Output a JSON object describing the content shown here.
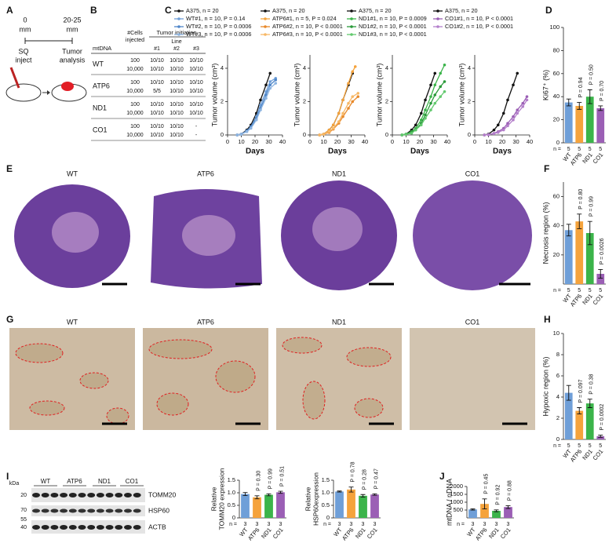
{
  "panel_labels": [
    "A",
    "B",
    "C",
    "D",
    "E",
    "F",
    "G",
    "H",
    "I",
    "J"
  ],
  "panel_A": {
    "start": [
      "0",
      "mm"
    ],
    "end": [
      "20-25",
      "mm"
    ],
    "inject": [
      "SQ",
      "inject"
    ],
    "analysis": [
      "Tumor",
      "analysis"
    ]
  },
  "table_B": {
    "header": {
      "cells": "#Cells",
      "injected": "injected",
      "tumor_initiation": "Tumor initiation",
      "line": "Line",
      "lines": [
        "#1",
        "#2",
        "#3"
      ],
      "mtdna": "mtDNA"
    },
    "rows": [
      {
        "name": "WT",
        "cells": [
          "100",
          "10,000"
        ],
        "results": [
          [
            "10/10",
            "10/10",
            "10/10"
          ],
          [
            "10/10",
            "10/10",
            "10/10"
          ]
        ]
      },
      {
        "name": "ATP6",
        "cells": [
          "100",
          "10,000"
        ],
        "results": [
          [
            "10/10",
            "10/10",
            "10/10"
          ],
          [
            "5/5",
            "10/10",
            "10/10"
          ]
        ]
      },
      {
        "name": "ND1",
        "cells": [
          "100",
          "10,000"
        ],
        "results": [
          [
            "10/10",
            "10/10",
            "10/10"
          ],
          [
            "10/10",
            "10/10",
            "10/10"
          ]
        ]
      },
      {
        "name": "CO1",
        "cells": [
          "100",
          "10,000"
        ],
        "results": [
          [
            "10/10",
            "10/10",
            "-"
          ],
          [
            "10/10",
            "10/10",
            "-"
          ]
        ]
      }
    ]
  },
  "panel_E": {
    "labels": [
      "WT",
      "ATP6",
      "ND1",
      "CO1"
    ]
  },
  "panel_G": {
    "labels": [
      "WT",
      "ATP6",
      "ND1",
      "CO1"
    ]
  },
  "panel_I": {
    "kda": "kDa",
    "markers": [
      "20",
      "70",
      "55",
      "40"
    ],
    "lanes": [
      "WT",
      "ATP6",
      "ND1",
      "CO1"
    ],
    "proteins": [
      "TOMM20",
      "HSP60",
      "ACTB"
    ]
  },
  "chart_data": [
    {
      "type": "line",
      "xlabel": "Days",
      "ylabel": "Tumor volume (cm³)",
      "xlim": [
        0,
        40
      ],
      "xticks": [
        0,
        10,
        20,
        30,
        40
      ],
      "ylim": [
        0,
        4.8
      ],
      "yticks": [
        0,
        2,
        4
      ],
      "series": [
        {
          "name": "A375, n = 20",
          "color": "#111111",
          "x": [
            7,
            10,
            14,
            17,
            21,
            24,
            28,
            31
          ],
          "values": [
            0,
            0.05,
            0.3,
            0.6,
            1.3,
            2.1,
            3.0,
            3.7
          ]
        },
        {
          "name": "WT#1, n = 10, P = 0.14",
          "color": "#6f9fd8",
          "x": [
            7,
            10,
            14,
            17,
            21,
            24,
            28,
            31,
            35
          ],
          "values": [
            0,
            0.05,
            0.2,
            0.5,
            1.1,
            1.8,
            2.6,
            3.2,
            3.4
          ]
        },
        {
          "name": "WT#2, n = 10, P = 0.0006",
          "color": "#4f86c9",
          "x": [
            7,
            10,
            14,
            17,
            21,
            24,
            28,
            31,
            35
          ],
          "values": [
            0,
            0.05,
            0.25,
            0.5,
            1.0,
            1.6,
            2.4,
            3.0,
            3.3
          ]
        },
        {
          "name": "WT#3, n = 10, P = 0.0006",
          "color": "#8db4e0",
          "x": [
            7,
            10,
            14,
            17,
            21,
            24,
            28,
            31,
            35
          ],
          "values": [
            0,
            0.05,
            0.2,
            0.4,
            0.9,
            1.5,
            2.2,
            2.8,
            3.1
          ]
        }
      ]
    },
    {
      "type": "line",
      "xlabel": "Days",
      "ylabel": "Tumor volume (cm³)",
      "xlim": [
        0,
        40
      ],
      "xticks": [
        0,
        10,
        20,
        30,
        40
      ],
      "ylim": [
        0,
        4.8
      ],
      "yticks": [
        0,
        2,
        4
      ],
      "series": [
        {
          "name": "A375, n = 20",
          "color": "#111111",
          "x": [
            7,
            10,
            14,
            17,
            21,
            24,
            28,
            31
          ],
          "values": [
            0,
            0.05,
            0.3,
            0.6,
            1.3,
            2.1,
            3.0,
            3.7
          ]
        },
        {
          "name": "ATP6#1, n = 5, P = 0.024",
          "color": "#f5a33c",
          "x": [
            7,
            10,
            14,
            17,
            21,
            24,
            28,
            31,
            33
          ],
          "values": [
            0,
            0.05,
            0.3,
            0.6,
            1.3,
            2.1,
            3.1,
            3.8,
            4.1
          ]
        },
        {
          "name": "ATP6#2, n = 10, P < 0.0001",
          "color": "#e8892a",
          "x": [
            7,
            10,
            14,
            17,
            21,
            24,
            28,
            31,
            35
          ],
          "values": [
            0,
            0.05,
            0.15,
            0.35,
            0.7,
            1.1,
            1.6,
            2.0,
            2.3
          ]
        },
        {
          "name": "ATP6#3, n = 10, P < 0.0001",
          "color": "#f7b866",
          "x": [
            7,
            10,
            14,
            17,
            21,
            24,
            28,
            31,
            35
          ],
          "values": [
            0,
            0.05,
            0.2,
            0.4,
            0.8,
            1.3,
            1.9,
            2.3,
            2.5
          ]
        }
      ]
    },
    {
      "type": "line",
      "xlabel": "Days",
      "ylabel": "Tumor volume (cm³)",
      "xlim": [
        0,
        40
      ],
      "xticks": [
        0,
        10,
        20,
        30,
        40
      ],
      "ylim": [
        0,
        4.8
      ],
      "yticks": [
        0,
        2,
        4
      ],
      "series": [
        {
          "name": "A375, n = 20",
          "color": "#111111",
          "x": [
            7,
            10,
            14,
            17,
            21,
            24,
            28,
            31
          ],
          "values": [
            0,
            0.05,
            0.3,
            0.6,
            1.3,
            2.1,
            3.0,
            3.7
          ]
        },
        {
          "name": "ND1#1, n = 10, P = 0.0009",
          "color": "#3bb44a",
          "x": [
            7,
            10,
            14,
            17,
            21,
            24,
            28,
            31,
            35,
            38
          ],
          "values": [
            0,
            0.05,
            0.2,
            0.4,
            0.9,
            1.5,
            2.3,
            3.0,
            3.7,
            4.2
          ]
        },
        {
          "name": "ND1#2, n = 10, P < 0.0001",
          "color": "#2a9a3a",
          "x": [
            7,
            10,
            14,
            17,
            21,
            24,
            28,
            31,
            35,
            38
          ],
          "values": [
            0,
            0.05,
            0.15,
            0.3,
            0.7,
            1.2,
            1.9,
            2.4,
            2.9,
            3.2
          ]
        },
        {
          "name": "ND1#3, n = 10, P < 0.0001",
          "color": "#62c96e",
          "x": [
            7,
            10,
            14,
            17,
            21,
            24,
            28,
            31,
            35,
            38
          ],
          "values": [
            0,
            0.05,
            0.1,
            0.3,
            0.6,
            1.0,
            1.5,
            1.9,
            2.3,
            2.6
          ]
        }
      ]
    },
    {
      "type": "line",
      "xlabel": "Days",
      "ylabel": "Tumor volume (cm³)",
      "xlim": [
        0,
        40
      ],
      "xticks": [
        0,
        10,
        20,
        30,
        40
      ],
      "ylim": [
        0,
        4.8
      ],
      "yticks": [
        0,
        2,
        4
      ],
      "series": [
        {
          "name": "A375, n = 20",
          "color": "#111111",
          "x": [
            7,
            10,
            14,
            17,
            21,
            24,
            28,
            31
          ],
          "values": [
            0,
            0.05,
            0.3,
            0.6,
            1.3,
            2.1,
            3.0,
            3.7
          ]
        },
        {
          "name": "CO1#1, n = 10, P < 0.0001",
          "color": "#9b5fb5",
          "x": [
            7,
            10,
            14,
            17,
            21,
            24,
            28,
            31,
            35,
            38
          ],
          "values": [
            0,
            0.02,
            0.1,
            0.2,
            0.4,
            0.7,
            1.1,
            1.5,
            1.9,
            2.3
          ]
        },
        {
          "name": "CO1#2, n = 10, P < 0.0001",
          "color": "#b47fcb",
          "x": [
            7,
            10,
            14,
            17,
            21,
            24,
            28,
            31,
            35,
            38
          ],
          "values": [
            0,
            0.02,
            0.08,
            0.15,
            0.3,
            0.55,
            0.9,
            1.3,
            1.7,
            2.1
          ]
        }
      ]
    },
    {
      "type": "bar",
      "ylabel": "Ki67⁺ (%)",
      "categories": [
        "WT",
        "ATP6",
        "ND1",
        "CO1"
      ],
      "values": [
        35,
        32,
        40,
        30
      ],
      "errors": [
        3,
        3,
        6,
        2
      ],
      "colors": [
        "#6f9fd8",
        "#f5a33c",
        "#3bb44a",
        "#9b5fb5"
      ],
      "ylim": [
        0,
        100
      ],
      "yticks": [
        0,
        20,
        40,
        60,
        80,
        100
      ],
      "annotations": [
        null,
        "P = 0.94",
        "P = 0.50",
        "P = 0.70"
      ],
      "n_prefix": "n =",
      "n": [
        5,
        5,
        5,
        5
      ]
    },
    {
      "type": "bar",
      "ylabel": "Necrosis region (%)",
      "categories": [
        "WT",
        "ATP6",
        "ND1",
        "CO1"
      ],
      "values": [
        37,
        43,
        35,
        7
      ],
      "errors": [
        4,
        5,
        8,
        3
      ],
      "colors": [
        "#6f9fd8",
        "#f5a33c",
        "#3bb44a",
        "#9b5fb5"
      ],
      "ylim": [
        0,
        70
      ],
      "yticks": [
        20,
        40,
        60
      ],
      "annotations": [
        null,
        "P = 0.80",
        "P = 0.99",
        "P = 0.0026"
      ],
      "n_prefix": "n =",
      "n": [
        5,
        5,
        5,
        5
      ]
    },
    {
      "type": "bar",
      "ylabel": "Hypoxic region (%)",
      "categories": [
        "WT",
        "ATP6",
        "ND1",
        "CO1"
      ],
      "values": [
        4.4,
        2.7,
        3.4,
        0.3
      ],
      "errors": [
        0.7,
        0.3,
        0.4,
        0.1
      ],
      "colors": [
        "#6f9fd8",
        "#f5a33c",
        "#3bb44a",
        "#9b5fb5"
      ],
      "ylim": [
        0,
        10
      ],
      "yticks": [
        0,
        2,
        4,
        6,
        8,
        10
      ],
      "annotations": [
        null,
        "P = 0.097",
        "P = 0.38",
        "P = 0.0002"
      ],
      "n_prefix": "n =",
      "n": [
        5,
        5,
        5,
        5
      ]
    },
    {
      "type": "bar",
      "ylabel": [
        "Relative",
        "TOMM20 expression"
      ],
      "categories": [
        "WT",
        "ATP6",
        "ND1",
        "CO1"
      ],
      "values": [
        0.95,
        0.82,
        0.92,
        1.02
      ],
      "errors": [
        0.06,
        0.06,
        0.04,
        0.04
      ],
      "colors": [
        "#6f9fd8",
        "#f5a33c",
        "#3bb44a",
        "#9b5fb5"
      ],
      "ylim": [
        0,
        1.5
      ],
      "yticks": [
        0,
        0.5,
        {
          "value": 1,
          "label": "1.0"
        },
        1.5
      ],
      "annotations": [
        null,
        "P = 0.30",
        "P = 0.99",
        "P = 0.51"
      ],
      "n_prefix": "n =",
      "n": [
        3,
        3,
        3,
        3
      ]
    },
    {
      "type": "bar",
      "ylabel": [
        "Relative",
        "HSP60expression"
      ],
      "categories": [
        "WT",
        "ATP6",
        "ND1",
        "CO1"
      ],
      "values": [
        1.05,
        1.13,
        0.88,
        0.93
      ],
      "errors": [
        0.02,
        0.1,
        0.05,
        0.03
      ],
      "colors": [
        "#6f9fd8",
        "#f5a33c",
        "#3bb44a",
        "#9b5fb5"
      ],
      "ylim": [
        0,
        1.5
      ],
      "yticks": [
        0,
        0.5,
        {
          "value": 1,
          "label": "1.0"
        },
        1.5
      ],
      "annotations": [
        null,
        "P = 0.78",
        "P = 0.28",
        "P = 0.47"
      ],
      "n_prefix": "n =",
      "n": [
        3,
        3,
        3,
        3
      ]
    },
    {
      "type": "bar",
      "ylabel": "mtDNA / nDNA",
      "categories": [
        "WT",
        "ATP6",
        "ND1",
        "CO1"
      ],
      "values": [
        540,
        890,
        450,
        690
      ],
      "errors": [
        40,
        320,
        60,
        90
      ],
      "colors": [
        "#6f9fd8",
        "#f5a33c",
        "#3bb44a",
        "#9b5fb5"
      ],
      "ylim": [
        0,
        2000
      ],
      "yticks": [
        500,
        1000,
        1500,
        2000
      ],
      "annotations": [
        null,
        "P = 0.45",
        "P = 0.92",
        "P = 0.88"
      ],
      "n_prefix": "n =",
      "n": [
        3,
        3,
        3,
        3
      ]
    }
  ]
}
